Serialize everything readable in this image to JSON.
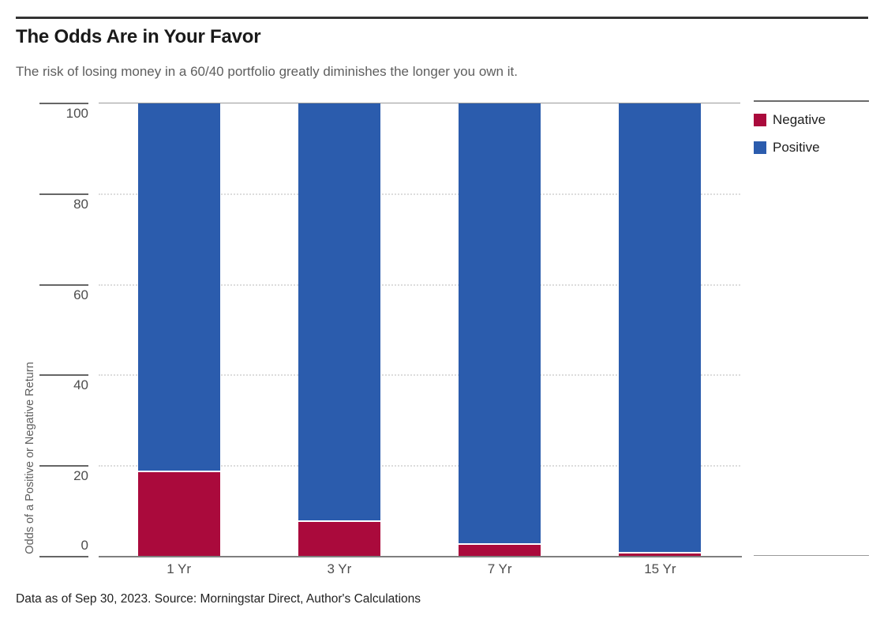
{
  "header": {
    "title": "The Odds Are in Your Favor",
    "subtitle": "The risk of losing money in a 60/40 portfolio greatly diminishes the longer you own it."
  },
  "footer": {
    "text": "Data as of Sep 30, 2023. Source: Morningstar Direct, Author's Calculations"
  },
  "colors": {
    "negative": "#aa0a3c",
    "positive": "#2b5cad",
    "top_rule": "#333333",
    "grid_dotted": "#dcdcdc",
    "axis_line": "#7f7f7f"
  },
  "chart_data": {
    "type": "bar",
    "stacked": true,
    "title": "The Odds Are in Your Favor",
    "subtitle": "The risk of losing money in a 60/40 portfolio greatly diminishes the longer you own it.",
    "categories": [
      "1 Yr",
      "3 Yr",
      "7 Yr",
      "15 Yr"
    ],
    "series": [
      {
        "name": "Negative",
        "color": "#aa0a3c",
        "values": [
          19,
          8,
          3,
          1
        ]
      },
      {
        "name": "Positive",
        "color": "#2b5cad",
        "values": [
          81,
          92,
          97,
          99
        ]
      }
    ],
    "xlabel": "",
    "ylabel": "Odds of a Positive or Negative Return",
    "yticks": [
      0,
      20,
      40,
      60,
      80,
      100
    ],
    "ylim": [
      0,
      100
    ],
    "grid": "horizontal dotted at 20, 40, 60, 80",
    "legend_position": "top-right",
    "legend_entries": [
      "Negative",
      "Positive"
    ]
  }
}
